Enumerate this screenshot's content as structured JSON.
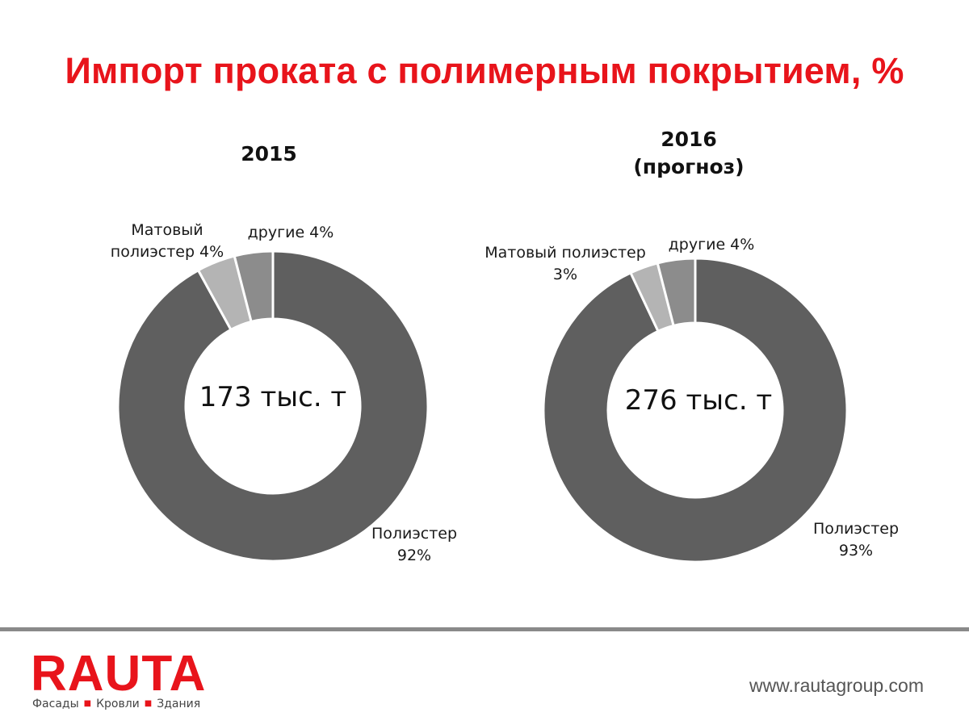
{
  "page": {
    "title": "Импорт проката с полимерным покрытием, %"
  },
  "colors": {
    "title_red": "#e8141b",
    "poliester": "#5f5f5f",
    "matte": "#b4b4b4",
    "other": "#8c8c8c"
  },
  "chart_data": [
    {
      "type": "pie",
      "donut": true,
      "title": "2015",
      "center_label": "173 тыс. т",
      "categories": [
        "Полиэстер",
        "Матовый полиэстер",
        "другие"
      ],
      "values": [
        92,
        4,
        4
      ],
      "labels": {
        "poliester": [
          "Полиэстер",
          "92%"
        ],
        "matte": [
          "Матовый",
          "полиэстер 4%"
        ],
        "other": [
          "другие 4%"
        ]
      }
    },
    {
      "type": "pie",
      "donut": true,
      "title": "2016",
      "subtitle": "(прогноз)",
      "center_label": "276 тыс. т",
      "categories": [
        "Полиэстер",
        "Матовый полиэстер",
        "другие"
      ],
      "values": [
        93,
        3,
        4
      ],
      "labels": {
        "poliester": [
          "Полиэстер",
          "93%"
        ],
        "matte": [
          "Матовый полиэстер",
          "3%"
        ],
        "other": [
          "другие 4%"
        ]
      }
    }
  ],
  "footer": {
    "logo": "RAUTA",
    "tagline": [
      "Фасады",
      "Кровли",
      "Здания"
    ],
    "website": "www.rautagroup.com"
  }
}
